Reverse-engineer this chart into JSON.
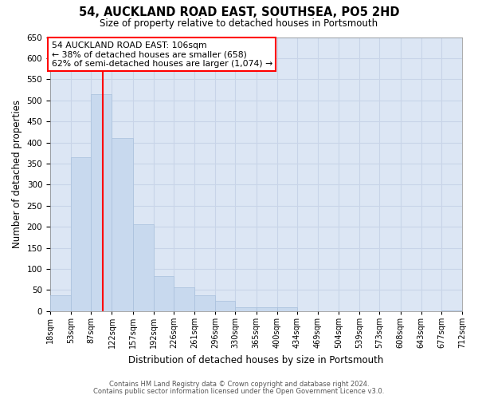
{
  "title": "54, AUCKLAND ROAD EAST, SOUTHSEA, PO5 2HD",
  "subtitle": "Size of property relative to detached houses in Portsmouth",
  "xlabel": "Distribution of detached houses by size in Portsmouth",
  "ylabel": "Number of detached properties",
  "bar_color": "#c8d9ee",
  "bar_edge_color": "#a8c0dc",
  "grid_color": "#c8d4e8",
  "plot_bg_color": "#dce6f4",
  "fig_bg_color": "#ffffff",
  "bin_edges": [
    18,
    53,
    87,
    122,
    157,
    192,
    226,
    261,
    296,
    330,
    365,
    400,
    434,
    469,
    504,
    539,
    573,
    608,
    643,
    677,
    712
  ],
  "bin_labels": [
    "18sqm",
    "53sqm",
    "87sqm",
    "122sqm",
    "157sqm",
    "192sqm",
    "226sqm",
    "261sqm",
    "296sqm",
    "330sqm",
    "365sqm",
    "400sqm",
    "434sqm",
    "469sqm",
    "504sqm",
    "539sqm",
    "573sqm",
    "608sqm",
    "643sqm",
    "677sqm",
    "712sqm"
  ],
  "bar_heights": [
    38,
    365,
    515,
    410,
    207,
    83,
    57,
    37,
    25,
    10,
    10,
    10,
    0,
    0,
    0,
    0,
    0,
    0,
    0,
    2
  ],
  "red_line_x": 106,
  "annotation_title": "54 AUCKLAND ROAD EAST: 106sqm",
  "annotation_line1": "← 38% of detached houses are smaller (658)",
  "annotation_line2": "62% of semi-detached houses are larger (1,074) →",
  "ylim": [
    0,
    650
  ],
  "yticks": [
    0,
    50,
    100,
    150,
    200,
    250,
    300,
    350,
    400,
    450,
    500,
    550,
    600,
    650
  ],
  "footer1": "Contains HM Land Registry data © Crown copyright and database right 2024.",
  "footer2": "Contains public sector information licensed under the Open Government Licence v3.0."
}
